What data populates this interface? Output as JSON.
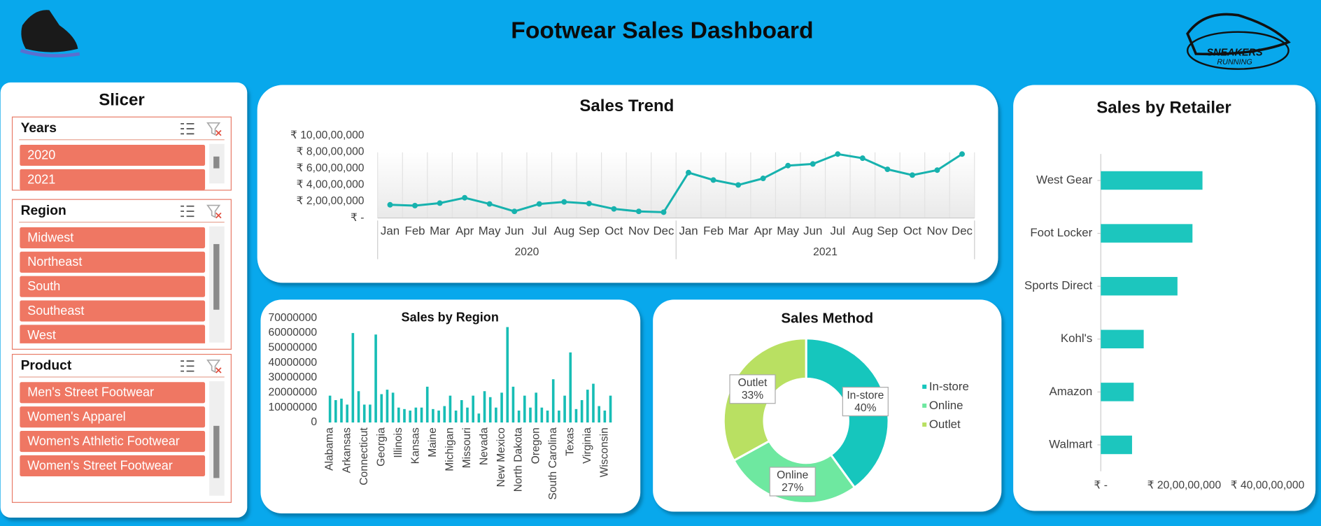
{
  "header": {
    "title": "Footwear Sales Dashboard",
    "logo_text": "SNEAKERS",
    "logo_subtext": "RUNNING"
  },
  "slicer": {
    "title": "Slicer",
    "filters": [
      {
        "name": "Years",
        "items": [
          "2020",
          "2021"
        ]
      },
      {
        "name": "Region",
        "items": [
          "Midwest",
          "Northeast",
          "South",
          "Southeast",
          "West"
        ]
      },
      {
        "name": "Product",
        "items": [
          "Men's Street Footwear",
          "Women's Apparel",
          "Women's Athletic Footwear",
          "Women's Street Footwear"
        ]
      }
    ]
  },
  "chart_data": [
    {
      "type": "line",
      "title": "Sales Trend",
      "categories": [
        "Jan",
        "Feb",
        "Mar",
        "Apr",
        "May",
        "Jun",
        "Jul",
        "Aug",
        "Sep",
        "Oct",
        "Nov",
        "Dec",
        "Jan",
        "Feb",
        "Mar",
        "Apr",
        "May",
        "Jun",
        "Jul",
        "Aug",
        "Sep",
        "Oct",
        "Nov",
        "Dec"
      ],
      "category_groups": [
        "2020",
        "2021"
      ],
      "values": [
        16000000,
        15000000,
        18000000,
        24500000,
        17000000,
        8000000,
        17000000,
        19500000,
        17500000,
        11000000,
        8000000,
        7000000,
        55000000,
        46000000,
        40000000,
        48000000,
        63500000,
        65500000,
        77500000,
        72500000,
        59000000,
        52000000,
        58000000,
        77500000
      ],
      "color": "#17b2ae",
      "ylim": [
        0,
        100000000
      ],
      "yticks": [
        {
          "value": 0,
          "label": "₹ -"
        },
        {
          "value": 20000000,
          "label": "₹ 2,00,00,000"
        },
        {
          "value": 40000000,
          "label": "₹ 4,00,00,000"
        },
        {
          "value": 60000000,
          "label": "₹ 6,00,00,000"
        },
        {
          "value": 80000000,
          "label": "₹ 8,00,00,000"
        },
        {
          "value": 100000000,
          "label": "₹ 10,00,00,000"
        }
      ]
    },
    {
      "type": "bar",
      "title": "Sales by Region",
      "categories": [
        "Alabama",
        null,
        null,
        "Arkansas",
        null,
        null,
        "Connecticut",
        null,
        null,
        "Georgia",
        null,
        null,
        "Illinois",
        null,
        null,
        "Kansas",
        null,
        null,
        "Maine",
        null,
        null,
        "Michigan",
        null,
        null,
        "Missouri",
        null,
        null,
        "Nevada",
        null,
        null,
        "New Mexico",
        null,
        null,
        "North Dakota",
        null,
        null,
        "Oregon",
        null,
        null,
        "South Carolina",
        null,
        null,
        "Texas",
        null,
        null,
        "Virginia",
        null,
        null,
        "Wisconsin",
        null
      ],
      "values": [
        18000000,
        15000000,
        16000000,
        12000000,
        60000000,
        21000000,
        12000000,
        12000000,
        59000000,
        19000000,
        22000000,
        20000000,
        10000000,
        9000000,
        8000000,
        10000000,
        10000000,
        24000000,
        9000000,
        8000000,
        11000000,
        18000000,
        8000000,
        15000000,
        10000000,
        18000000,
        6000000,
        21000000,
        17000000,
        10000000,
        20000000,
        64000000,
        24000000,
        8000000,
        18000000,
        10000000,
        20000000,
        10000000,
        8000000,
        29000000,
        8000000,
        18000000,
        47000000,
        9000000,
        15000000,
        22000000,
        26000000,
        11000000,
        8000000,
        18000000
      ],
      "color": "#17bdb5",
      "ylim": [
        0,
        70000000
      ],
      "yticks": [
        0,
        10000000,
        20000000,
        30000000,
        40000000,
        50000000,
        60000000,
        70000000
      ]
    },
    {
      "type": "pie",
      "title": "Sales Method",
      "categories": [
        "In-store",
        "Online",
        "Outlet"
      ],
      "values": [
        40,
        27,
        33
      ],
      "value_labels": [
        "40%",
        "27%",
        "33%"
      ],
      "colors": [
        "#16c6bd",
        "#6ee8a0",
        "#b9e062"
      ],
      "donut": true,
      "legend": "right"
    },
    {
      "type": "barh",
      "title": "Sales by Retailer",
      "categories": [
        "West Gear",
        "Foot Locker",
        "Sports Direct",
        "Kohl's",
        "Amazon",
        "Walmart"
      ],
      "values": [
        244000000,
        220000000,
        184000000,
        103000000,
        79000000,
        75000000
      ],
      "color": "#1cc6be",
      "xlim": [
        0,
        400000000
      ],
      "xticks": [
        {
          "value": 0,
          "label": "₹ -"
        },
        {
          "value": 200000000,
          "label": "₹ 20,00,00,000"
        },
        {
          "value": 400000000,
          "label": "₹ 40,00,00,000"
        }
      ]
    }
  ]
}
